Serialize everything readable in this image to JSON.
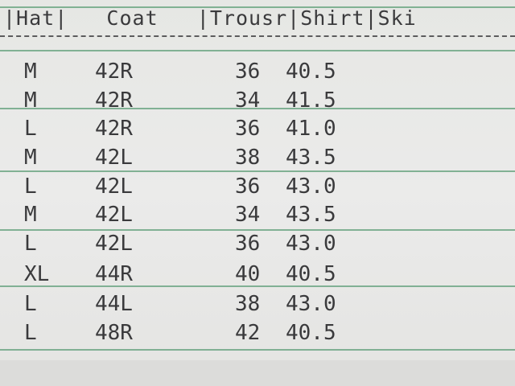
{
  "header": {
    "hat": "|Hat|",
    "coat": "Coat",
    "trousers": "|Trousr|",
    "shirt": "Shirt|",
    "skirt": "Ski"
  },
  "rows": [
    {
      "hat": "M",
      "coat": "42R",
      "trousers": "36",
      "shirt": "40.5"
    },
    {
      "hat": "M",
      "coat": "42R",
      "trousers": "34",
      "shirt": "41.5"
    },
    {
      "hat": "L",
      "coat": "42R",
      "trousers": "36",
      "shirt": "41.0"
    },
    {
      "hat": "M",
      "coat": "42L",
      "trousers": "38",
      "shirt": "43.5"
    },
    {
      "hat": "L",
      "coat": "42L",
      "trousers": "36",
      "shirt": "43.0"
    },
    {
      "hat": "M",
      "coat": "42L",
      "trousers": "34",
      "shirt": "43.5"
    },
    {
      "hat": "L",
      "coat": "42L",
      "trousers": "36",
      "shirt": "43.0"
    },
    {
      "hat": "XL",
      "coat": "44R",
      "trousers": "40",
      "shirt": "40.5"
    },
    {
      "hat": "L",
      "coat": "44L",
      "trousers": "38",
      "shirt": "43.0"
    },
    {
      "hat": "L",
      "coat": "48R",
      "trousers": "42",
      "shirt": "40.5"
    }
  ],
  "colors": {
    "ink": "#3a3a3c",
    "rule": "#6fa785",
    "paper": "#e8e8e6"
  }
}
